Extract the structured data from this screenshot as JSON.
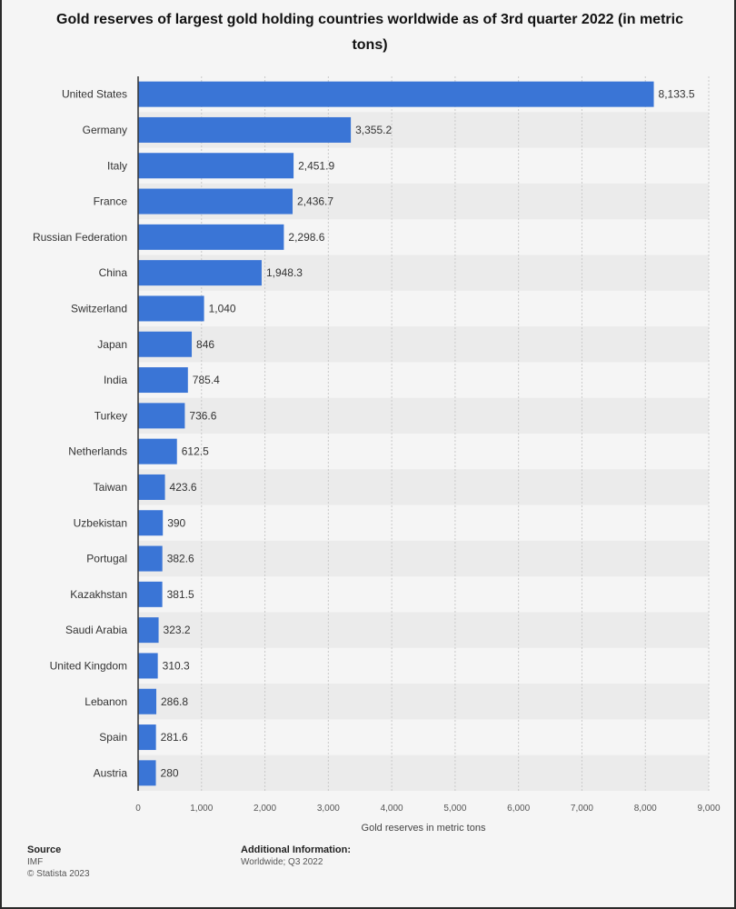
{
  "chart_data": {
    "type": "bar",
    "orientation": "horizontal",
    "title": "Gold reserves of largest gold holding countries worldwide as of 3rd quarter 2022 (in metric tons)",
    "xlabel": "Gold reserves in metric tons",
    "ylabel": "",
    "xlim": [
      0,
      9000
    ],
    "xticks": [
      0,
      1000,
      2000,
      3000,
      4000,
      5000,
      6000,
      7000,
      8000,
      9000
    ],
    "xtick_labels": [
      "0",
      "1,000",
      "2,000",
      "3,000",
      "4,000",
      "5,000",
      "6,000",
      "7,000",
      "8,000",
      "9,000"
    ],
    "categories": [
      "United States",
      "Germany",
      "Italy",
      "France",
      "Russian Federation",
      "China",
      "Switzerland",
      "Japan",
      "India",
      "Turkey",
      "Netherlands",
      "Taiwan",
      "Uzbekistan",
      "Portugal",
      "Kazakhstan",
      "Saudi Arabia",
      "United Kingdom",
      "Lebanon",
      "Spain",
      "Austria"
    ],
    "values": [
      8133.5,
      3355.2,
      2451.9,
      2436.7,
      2298.6,
      1948.3,
      1040,
      846,
      785.4,
      736.6,
      612.5,
      423.6,
      390,
      382.6,
      381.5,
      323.2,
      310.3,
      286.8,
      281.6,
      280
    ],
    "value_labels": [
      "8,133.5",
      "3,355.2",
      "2,451.9",
      "2,436.7",
      "2,298.6",
      "1,948.3",
      "1,040",
      "846",
      "785.4",
      "736.6",
      "612.5",
      "423.6",
      "390",
      "382.6",
      "381.5",
      "323.2",
      "310.3",
      "286.8",
      "281.6",
      "280"
    ],
    "bar_color": "#3a75d6",
    "grid": true
  },
  "footer": {
    "source_label": "Source",
    "source_value": "IMF",
    "copyright": "© Statista 2023",
    "additional_label": "Additional Information:",
    "additional_value": "Worldwide; Q3 2022"
  }
}
